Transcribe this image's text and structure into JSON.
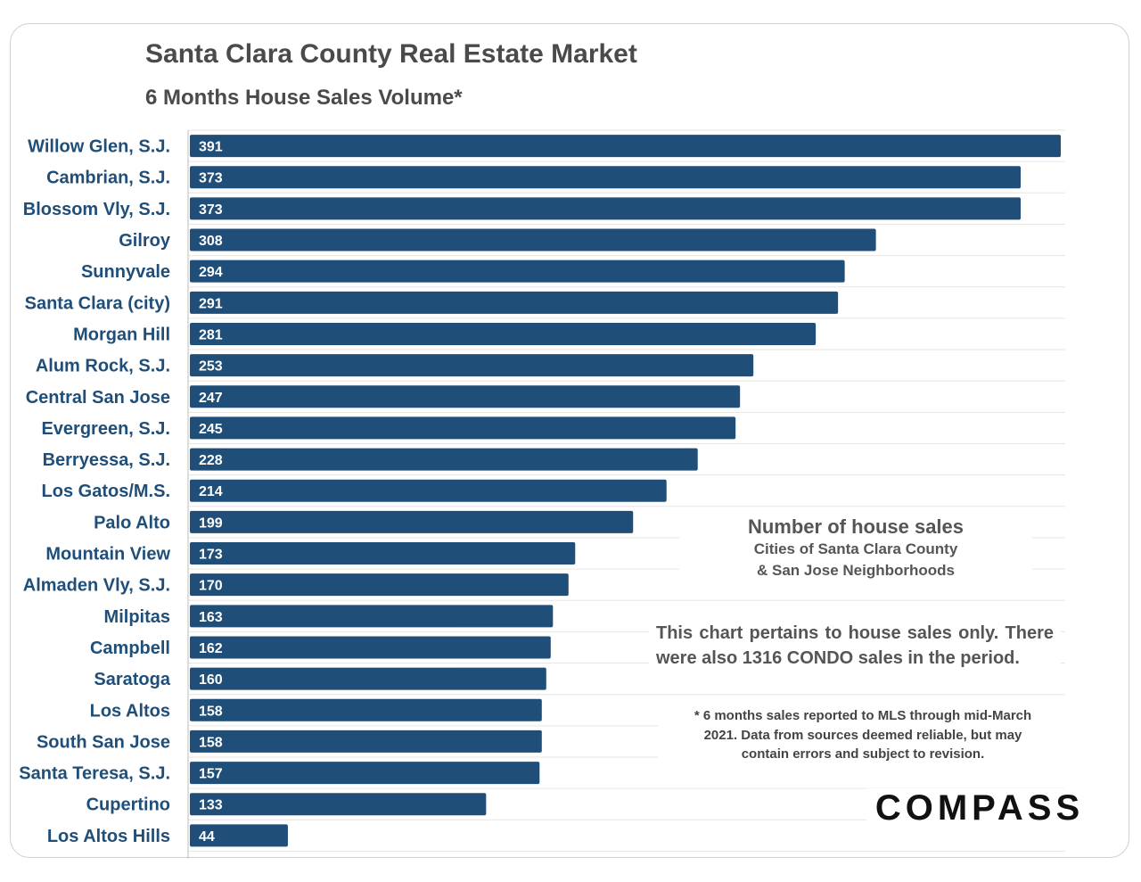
{
  "title": "Santa Clara County Real Estate Market",
  "subtitle": "6 Months House Sales Volume*",
  "legend": {
    "heading": "Number of house sales",
    "line1": "Cities of Santa Clara County",
    "line2": "& San Jose Neighborhoods"
  },
  "note": "This chart pertains to house sales only. There were also 1316 CONDO sales in the period.",
  "footnote": {
    "line1": "* 6 months sales reported to MLS through mid-March",
    "line2": "2021. Data from sources deemed reliable, but may",
    "line3": "contain errors and subject to revision."
  },
  "logo": "COMPASS",
  "colors": {
    "bar": "#1f4e79",
    "label": "#1f4e79",
    "title": "#4a4a4a"
  },
  "chart_data": {
    "type": "bar",
    "orientation": "horizontal",
    "title": "Santa Clara County Real Estate Market",
    "subtitle": "6 Months House Sales Volume*",
    "xlabel": "",
    "ylabel": "",
    "xlim": [
      0,
      400
    ],
    "grid": true,
    "categories": [
      "Willow Glen, S.J.",
      "Cambrian, S.J.",
      "Blossom Vly, S.J.",
      "Gilroy",
      "Sunnyvale",
      "Santa Clara (city)",
      "Morgan Hill",
      "Alum Rock, S.J.",
      "Central San Jose",
      "Evergreen, S.J.",
      "Berryessa, S.J.",
      "Los Gatos/M.S.",
      "Palo Alto",
      "Mountain View",
      "Almaden Vly, S.J.",
      "Milpitas",
      "Campbell",
      "Saratoga",
      "Los Altos",
      "South San Jose",
      "Santa Teresa, S.J.",
      "Cupertino",
      "Los Altos Hills"
    ],
    "values": [
      391,
      373,
      373,
      308,
      294,
      291,
      281,
      253,
      247,
      245,
      228,
      214,
      199,
      173,
      170,
      163,
      162,
      160,
      158,
      158,
      157,
      133,
      44
    ]
  }
}
